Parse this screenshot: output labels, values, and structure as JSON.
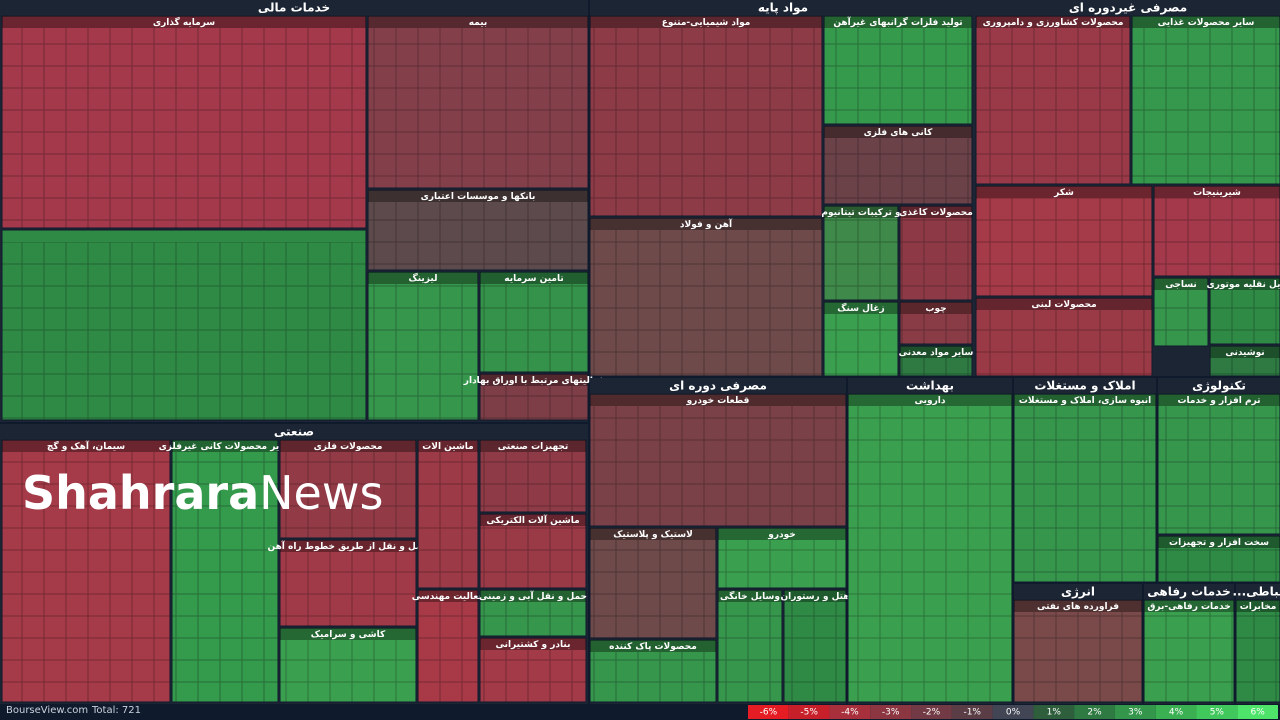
{
  "sectors": [
    {
      "title": "خدمات مالی",
      "groups": [
        {
          "title": "سرمایه گذاری",
          "color": "#a3394a"
        },
        {
          "color": "#2f8a45"
        },
        {
          "title": "بیمه",
          "color": "#84404a"
        },
        {
          "title": "بانکها و موسسات اعتباری",
          "color": "#5d4a4c"
        },
        {
          "title": "لیزینگ",
          "color": "#36964c"
        },
        {
          "title": "تامین سرمایه",
          "color": "#35924a"
        },
        {
          "title": "فعالیتهای مرتبط با اوراق بهادار",
          "color": "#7e3e48"
        }
      ]
    },
    {
      "title": "مواد پایه",
      "groups": [
        {
          "title": "مواد شیمیایی-متنوع",
          "color": "#8d3b47"
        },
        {
          "title": "تولید فلزات گرانبهای غیرآهن",
          "color": "#369a4c"
        },
        {
          "title": "کانی های فلزی",
          "color": "#6a4248"
        },
        {
          "title": "آهن و فولاد",
          "color": "#6e4a4a"
        },
        {
          "title": "و ترکیبات تیتانیوم",
          "color": "#3f8a4a"
        },
        {
          "title": "محصولات کاغذی",
          "color": "#8e3a46"
        },
        {
          "title": "زغال سنگ",
          "color": "#3aa050"
        },
        {
          "title": "چوب",
          "color": "#8a3c46"
        },
        {
          "title": "سایر مواد معدنی",
          "color": "#2f7a42"
        }
      ]
    },
    {
      "title": "مصرفی غیردوره ای",
      "groups": [
        {
          "title": "محصولات کشاورزی و دامپروری",
          "color": "#9a3a48"
        },
        {
          "title": "سایر محصولات غذایی",
          "color": "#36984c"
        },
        {
          "title": "شکر",
          "color": "#a53a48"
        },
        {
          "title": "شیرینیجات",
          "color": "#a3394a"
        },
        {
          "title": "نساجی",
          "color": "#36964c"
        },
        {
          "title": "ایل نقلیه موتوری",
          "color": "#2f8a45"
        },
        {
          "title": "محصولات لبنی",
          "color": "#9b3a47"
        },
        {
          "title": "نوشیدنی",
          "color": "#2f7a42"
        }
      ]
    },
    {
      "title": "صنعتی",
      "groups": [
        {
          "title": "سیمان، آهک و گچ",
          "color": "#a53a48"
        },
        {
          "title": "سایر محصولات کانی غیرفلزی",
          "color": "#349a4c"
        },
        {
          "title": "محصولات فلزی",
          "color": "#923b47"
        },
        {
          "title": "حمل و نقل از طریق خطوط راه آهن",
          "color": "#a03a48"
        },
        {
          "title": "کاشی و سرامیک",
          "color": "#3aa050"
        },
        {
          "title": "ماشین الات",
          "color": "#9c3a47"
        },
        {
          "title": "تجهیزات صنعتی",
          "color": "#8e3b47"
        },
        {
          "title": "ماشین آلات الکتریکی",
          "color": "#9a3a47"
        },
        {
          "title": "فعالیت مهندسی",
          "color": "#a83a48"
        },
        {
          "title": "حمل و نقل آبی و زمینی",
          "color": "#36964c"
        },
        {
          "title": "بنادر و کشتیرانی",
          "color": "#a33a48"
        }
      ]
    },
    {
      "title": "مصرفی دوره ای",
      "groups": [
        {
          "title": "قطعات خودرو",
          "color": "#7a4248"
        },
        {
          "title": "لاستیک و پلاستیک",
          "color": "#6e4a4a"
        },
        {
          "title": "خودرو",
          "color": "#3aa050"
        },
        {
          "title": "وسایل خانگی",
          "color": "#36964c"
        },
        {
          "title": "هتل و رستوران",
          "color": "#2f8a45"
        },
        {
          "title": "محصولات پاک کننده",
          "color": "#36964c"
        }
      ]
    },
    {
      "title": "بهداشت",
      "groups": [
        {
          "title": "دارویی",
          "color": "#3aa050"
        }
      ]
    },
    {
      "title": "املاک و مستغلات",
      "groups": [
        {
          "title": "انبوه سازی، املاک و مستغلات",
          "color": "#36964c"
        }
      ]
    },
    {
      "title": "تکنولوژی",
      "groups": [
        {
          "title": "ترم افزار و خدمات",
          "color": "#36964c"
        },
        {
          "title": "سخت افزار و تجهیزات",
          "color": "#2f8a45"
        }
      ]
    },
    {
      "title": "انرژی",
      "groups": [
        {
          "title": "فراورده های نفتی",
          "color": "#7a4a4a"
        }
      ]
    },
    {
      "title": "خدمات رفاهی",
      "groups": [
        {
          "title": "خدمات رفاهی-برق",
          "color": "#3aa050"
        }
      ]
    },
    {
      "title": "...تباطی",
      "groups": [
        {
          "title": "مخابرات",
          "color": "#2f8a45"
        }
      ]
    }
  ],
  "watermark": {
    "bold": "Shahrara",
    "light": "News"
  },
  "footer": {
    "source": "BourseView.com",
    "total": "Total: 721"
  },
  "legend": [
    {
      "label": "-6%",
      "color": "#e51c23"
    },
    {
      "label": "-5%",
      "color": "#c8202b"
    },
    {
      "label": "-4%",
      "color": "#a8303d"
    },
    {
      "label": "-3%",
      "color": "#8c3642"
    },
    {
      "label": "-2%",
      "color": "#723a44"
    },
    {
      "label": "-1%",
      "color": "#5a3d45"
    },
    {
      "label": "0%",
      "color": "#414554"
    },
    {
      "label": "1%",
      "color": "#2e5e3c"
    },
    {
      "label": "2%",
      "color": "#2f7a42"
    },
    {
      "label": "3%",
      "color": "#33964a"
    },
    {
      "label": "4%",
      "color": "#3ab052"
    },
    {
      "label": "5%",
      "color": "#41c85c"
    },
    {
      "label": "6%",
      "color": "#4ee46a"
    }
  ]
}
